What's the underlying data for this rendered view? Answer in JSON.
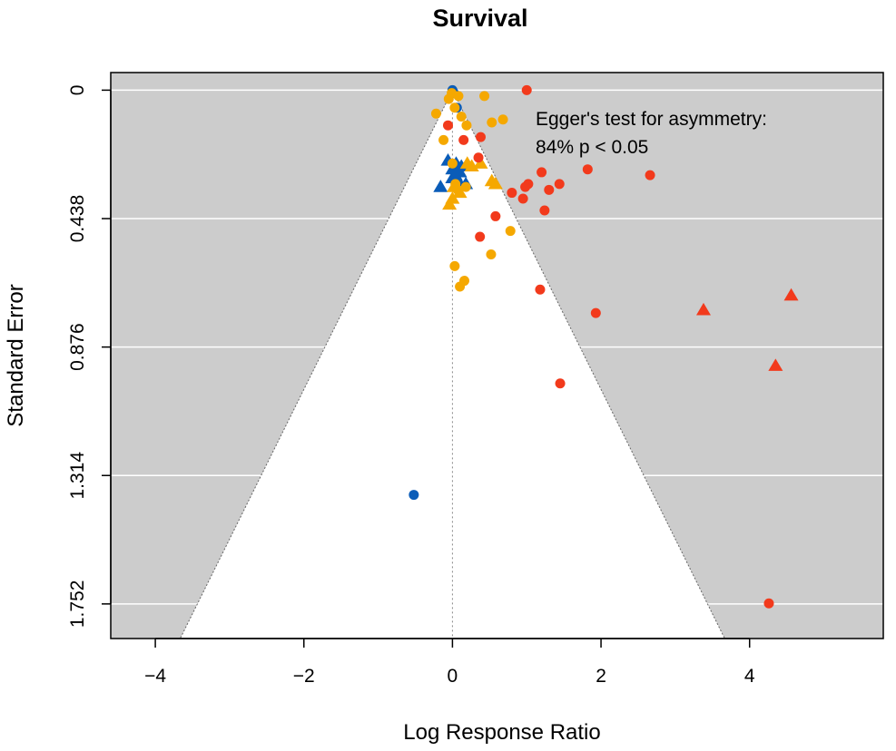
{
  "chart_data": {
    "type": "scatter",
    "title": "Survival",
    "xlabel": "Log Response Ratio",
    "ylabel": "Standard Error",
    "xlim": [
      -4.6,
      5.8
    ],
    "ylim": [
      1.87,
      -0.06
    ],
    "y_reversed": true,
    "x_ticks": [
      -4,
      -2,
      0,
      2,
      4
    ],
    "x_tick_labels": [
      "−4",
      "−2",
      "0",
      "2",
      "4"
    ],
    "y_ticks": [
      0,
      0.438,
      0.876,
      1.314,
      1.752
    ],
    "y_tick_labels": [
      "0",
      "0.438",
      "0.876",
      "1.314",
      "1.752"
    ],
    "grid": true,
    "funnel": {
      "center": 0,
      "max_se": 1.87,
      "z": 1.96
    },
    "annotation": [
      "Egger's test for asymmetry:",
      "84% p < 0.05"
    ],
    "colors": {
      "background": "#cccccc",
      "funnel": "#ffffff",
      "blue": "#0a5cb8",
      "orange": "#f5a800",
      "red": "#f23a1c"
    },
    "series": [
      {
        "color": "blue",
        "marker": "circle",
        "points": [
          [
            0.0,
            0.0
          ],
          [
            0.02,
            0.01
          ],
          [
            0.06,
            0.06
          ],
          [
            -0.52,
            1.38
          ]
        ]
      },
      {
        "color": "blue",
        "marker": "triangle",
        "points": [
          [
            -0.06,
            0.24
          ],
          [
            0.0,
            0.27
          ],
          [
            0.05,
            0.25
          ],
          [
            0.1,
            0.28
          ],
          [
            0.0,
            0.3
          ],
          [
            0.08,
            0.31
          ],
          [
            -0.16,
            0.33
          ],
          [
            0.18,
            0.32
          ],
          [
            0.04,
            0.29
          ],
          [
            0.12,
            0.26
          ]
        ]
      },
      {
        "color": "orange",
        "marker": "circle",
        "points": [
          [
            -0.01,
            0.01
          ],
          [
            0.08,
            0.02
          ],
          [
            0.43,
            0.02
          ],
          [
            -0.05,
            0.03
          ],
          [
            0.03,
            0.06
          ],
          [
            -0.22,
            0.08
          ],
          [
            0.12,
            0.09
          ],
          [
            0.68,
            0.1
          ],
          [
            0.53,
            0.11
          ],
          [
            0.19,
            0.12
          ],
          [
            -0.12,
            0.17
          ],
          [
            0.0,
            0.25
          ],
          [
            0.07,
            0.34
          ],
          [
            0.18,
            0.33
          ],
          [
            0.03,
            0.6
          ],
          [
            0.16,
            0.65
          ],
          [
            0.1,
            0.67
          ],
          [
            0.52,
            0.56
          ],
          [
            0.78,
            0.48
          ],
          [
            0.04,
            0.32
          ]
        ]
      },
      {
        "color": "orange",
        "marker": "triangle",
        "points": [
          [
            0.38,
            0.25
          ],
          [
            0.2,
            0.25
          ],
          [
            0.02,
            0.33
          ],
          [
            0.1,
            0.35
          ],
          [
            0.53,
            0.31
          ],
          [
            0.58,
            0.32
          ],
          [
            -0.04,
            0.39
          ],
          [
            0.0,
            0.37
          ],
          [
            0.26,
            0.26
          ]
        ]
      },
      {
        "color": "red",
        "marker": "circle",
        "points": [
          [
            1.0,
            0.0
          ],
          [
            -0.06,
            0.12
          ],
          [
            0.38,
            0.16
          ],
          [
            0.15,
            0.17
          ],
          [
            0.35,
            0.23
          ],
          [
            1.82,
            0.27
          ],
          [
            1.2,
            0.28
          ],
          [
            2.66,
            0.29
          ],
          [
            1.02,
            0.32
          ],
          [
            0.98,
            0.33
          ],
          [
            1.44,
            0.32
          ],
          [
            1.3,
            0.34
          ],
          [
            0.8,
            0.35
          ],
          [
            0.95,
            0.37
          ],
          [
            1.24,
            0.41
          ],
          [
            0.58,
            0.43
          ],
          [
            0.37,
            0.5
          ],
          [
            1.18,
            0.68
          ],
          [
            1.93,
            0.76
          ],
          [
            1.45,
            1.0
          ],
          [
            4.26,
            1.75
          ]
        ]
      },
      {
        "color": "red",
        "marker": "triangle",
        "points": [
          [
            3.38,
            0.75
          ],
          [
            4.56,
            0.7
          ],
          [
            4.35,
            0.94
          ]
        ]
      }
    ]
  }
}
